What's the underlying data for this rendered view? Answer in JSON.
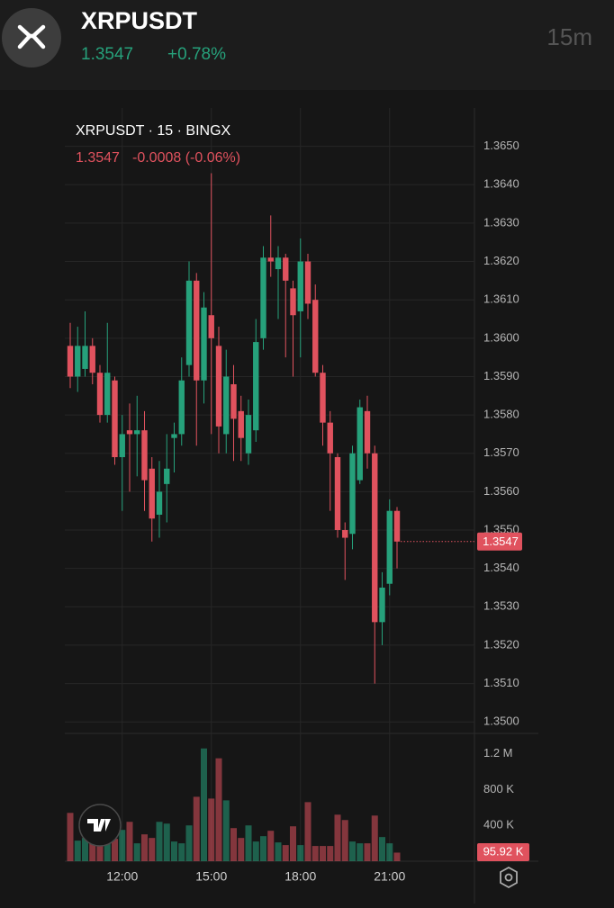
{
  "header": {
    "symbol": "XRPUSDT",
    "price": "1.3547",
    "change": "+0.78%",
    "interval": "15m"
  },
  "chart_data": {
    "type": "candlestick",
    "title": "XRPUSDT · 15 · BINGX",
    "subtitle": [
      "1.3547",
      "-0.0008 (-0.06%)"
    ],
    "up_color": "#26a17b",
    "down_color": "#e0525e",
    "grid": true,
    "categories": [
      null,
      null,
      null,
      null,
      null,
      null,
      null,
      "12:00",
      null,
      null,
      null,
      null,
      null,
      null,
      null,
      null,
      null,
      null,
      null,
      "15:00",
      null,
      null,
      null,
      null,
      null,
      null,
      null,
      null,
      null,
      null,
      null,
      "18:00",
      null,
      null,
      null,
      null,
      null,
      null,
      null,
      null,
      null,
      null,
      null,
      "21:00",
      null
    ],
    "open": [
      1.3598,
      1.359,
      1.3592,
      1.3598,
      1.3591,
      1.358,
      1.3589,
      1.3569,
      1.3576,
      1.3575,
      1.3576,
      1.3566,
      1.3554,
      1.3562,
      1.3574,
      1.3575,
      1.3593,
      1.3615,
      1.3589,
      1.3606,
      1.3598,
      1.3575,
      1.3588,
      1.3581,
      1.357,
      1.3576,
      1.36,
      1.3621,
      1.3618,
      1.3621,
      1.3613,
      1.3607,
      1.362,
      1.361,
      1.3591,
      1.3578,
      1.3569,
      1.355,
      1.3549,
      1.3563,
      1.3581,
      1.357,
      1.3526,
      1.3536,
      1.3555
    ],
    "high": [
      1.3604,
      1.3603,
      1.3607,
      1.36,
      1.3593,
      1.3604,
      1.359,
      1.358,
      1.3583,
      1.3585,
      1.3581,
      1.3569,
      1.3568,
      1.3575,
      1.3578,
      1.3595,
      1.362,
      1.3617,
      1.3612,
      1.3643,
      1.3603,
      1.3597,
      1.3593,
      1.3585,
      1.3584,
      1.3605,
      1.3624,
      1.3632,
      1.3624,
      1.3622,
      1.3615,
      1.3626,
      1.3622,
      1.3614,
      1.3593,
      1.3581,
      1.357,
      1.3552,
      1.3572,
      1.3584,
      1.3585,
      1.3572,
      1.3539,
      1.3558,
      1.3556
    ],
    "low": [
      1.3587,
      1.3586,
      1.359,
      1.3588,
      1.3578,
      1.3578,
      1.3567,
      1.3555,
      1.356,
      1.3564,
      1.3555,
      1.3547,
      1.3548,
      1.3552,
      1.3565,
      1.3572,
      1.359,
      1.3572,
      1.3583,
      1.3575,
      1.357,
      1.357,
      1.3568,
      1.3568,
      1.3567,
      1.3573,
      1.3597,
      1.3616,
      1.3605,
      1.3595,
      1.359,
      1.3595,
      1.3605,
      1.359,
      1.3572,
      1.3555,
      1.3548,
      1.3537,
      1.3545,
      1.3562,
      1.3566,
      1.351,
      1.352,
      1.3533,
      1.354
    ],
    "close": [
      1.359,
      1.3598,
      1.3598,
      1.3591,
      1.358,
      1.3591,
      1.3569,
      1.3575,
      1.3575,
      1.3576,
      1.3563,
      1.3553,
      1.356,
      1.3566,
      1.3575,
      1.3589,
      1.3615,
      1.3589,
      1.3608,
      1.36,
      1.3577,
      1.359,
      1.3579,
      1.3574,
      1.358,
      1.3599,
      1.3621,
      1.362,
      1.3621,
      1.3615,
      1.3606,
      1.362,
      1.3609,
      1.3591,
      1.3578,
      1.357,
      1.355,
      1.3548,
      1.357,
      1.3582,
      1.357,
      1.3526,
      1.3535,
      1.3555,
      1.3547
    ],
    "ylim": [
      1.3497,
      1.366
    ],
    "yticks": [
      {
        "value": 1.35,
        "label": "1.3500"
      },
      {
        "value": 1.351,
        "label": "1.3510"
      },
      {
        "value": 1.352,
        "label": "1.3520"
      },
      {
        "value": 1.353,
        "label": "1.3530"
      },
      {
        "value": 1.354,
        "label": "1.3540"
      },
      {
        "value": 1.355,
        "label": "1.3550"
      },
      {
        "value": 1.356,
        "label": "1.3560"
      },
      {
        "value": 1.357,
        "label": "1.3570"
      },
      {
        "value": 1.358,
        "label": "1.3580"
      },
      {
        "value": 1.359,
        "label": "1.3590"
      },
      {
        "value": 1.36,
        "label": "1.3600"
      },
      {
        "value": 1.361,
        "label": "1.3610"
      },
      {
        "value": 1.362,
        "label": "1.3620"
      },
      {
        "value": 1.363,
        "label": "1.3630"
      },
      {
        "value": 1.364,
        "label": "1.3640"
      },
      {
        "value": 1.365,
        "label": "1.3650"
      }
    ],
    "volume": {
      "values": [
        540000,
        230000,
        260000,
        290000,
        230000,
        270000,
        250000,
        350000,
        440000,
        200000,
        300000,
        260000,
        440000,
        420000,
        220000,
        200000,
        400000,
        720000,
        1260000,
        700000,
        1150000,
        680000,
        370000,
        260000,
        400000,
        220000,
        280000,
        340000,
        210000,
        180000,
        390000,
        180000,
        660000,
        170000,
        170000,
        170000,
        520000,
        460000,
        220000,
        200000,
        200000,
        510000,
        270000,
        200000,
        95920
      ],
      "value_labels": [
        null,
        null,
        null,
        null,
        null,
        null,
        null,
        null,
        null,
        null,
        null,
        null,
        null,
        null,
        null,
        null,
        null,
        null,
        null,
        null,
        null,
        null,
        null,
        null,
        null,
        null,
        null,
        null,
        null,
        null,
        null,
        null,
        null,
        null,
        null,
        null,
        null,
        null,
        null,
        null,
        null,
        null,
        null,
        null,
        "95.92 K"
      ],
      "ylim": [
        0,
        1428000
      ],
      "yticks": [
        {
          "value": 400000,
          "label": "400 K"
        },
        {
          "value": 800000,
          "label": "800 K"
        },
        {
          "value": 1200000,
          "label": "1.2 M"
        }
      ]
    }
  }
}
